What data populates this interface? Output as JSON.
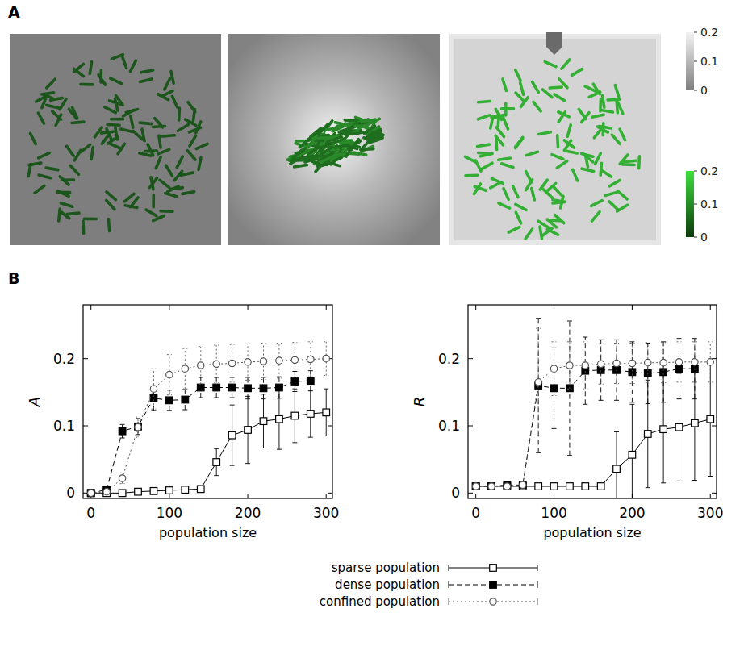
{
  "labels": [
    "A",
    "B"
  ],
  "panel_a": {
    "colorbars": [
      {
        "range": [
          0,
          0.2
        ],
        "ticks": [
          0,
          0.1,
          0.2
        ]
      },
      {
        "range": [
          0,
          0.2
        ],
        "ticks": [
          0,
          0.1,
          0.2
        ]
      }
    ]
  },
  "chart_data": [
    {
      "type": "line",
      "y_label": "A",
      "x_label": "population size",
      "xlim": [
        -10,
        308
      ],
      "ylim": [
        -0.008,
        0.28
      ],
      "xticks": [
        0,
        100,
        200,
        300
      ],
      "yticks": [
        0,
        0.1,
        0.2
      ],
      "legend": "bottom",
      "series": [
        {
          "name": "sparse population",
          "color": "#000000",
          "marker": "square-open",
          "line_style": "solid",
          "x": [
            0,
            20,
            40,
            60,
            80,
            100,
            120,
            140,
            160,
            180,
            200,
            220,
            240,
            260,
            280,
            300
          ],
          "values": [
            0,
            0,
            0,
            0.002,
            0.003,
            0.004,
            0.005,
            0.006,
            0.046,
            0.086,
            0.094,
            0.107,
            0.11,
            0.115,
            0.118,
            0.12
          ],
          "error": [
            0,
            0,
            0.001,
            0.002,
            0.002,
            0.003,
            0.003,
            0.004,
            0.02,
            0.045,
            0.05,
            0.04,
            0.045,
            0.04,
            0.035,
            0.035
          ]
        },
        {
          "name": "dense population",
          "color": "#000000",
          "marker": "square",
          "line_style": "dashed",
          "x": [
            0,
            20,
            40,
            60,
            80,
            100,
            120,
            140,
            160,
            180,
            200,
            220,
            240,
            260,
            280
          ],
          "values": [
            0,
            0.005,
            0.092,
            0.099,
            0.141,
            0.138,
            0.139,
            0.157,
            0.157,
            0.157,
            0.156,
            0.156,
            0.157,
            0.166,
            0.167
          ],
          "error": [
            0,
            0.004,
            0.01,
            0.012,
            0.018,
            0.015,
            0.015,
            0.015,
            0.015,
            0.015,
            0.016,
            0.016,
            0.016,
            0.015,
            0.015
          ]
        },
        {
          "name": "confined population",
          "color": "#555555",
          "marker": "circle-open",
          "line_style": "dotted",
          "x": [
            0,
            20,
            40,
            60,
            80,
            100,
            120,
            140,
            160,
            180,
            200,
            220,
            240,
            260,
            280,
            300
          ],
          "values": [
            0,
            0.002,
            0.022,
            0.098,
            0.155,
            0.176,
            0.185,
            0.19,
            0.192,
            0.193,
            0.195,
            0.196,
            0.197,
            0.198,
            0.199,
            0.2
          ],
          "error": [
            0,
            0.003,
            0.008,
            0.015,
            0.03,
            0.03,
            0.03,
            0.028,
            0.028,
            0.028,
            0.027,
            0.027,
            0.026,
            0.026,
            0.026,
            0.025
          ]
        }
      ]
    },
    {
      "type": "line",
      "y_label": "R",
      "x_label": "population size",
      "xlim": [
        -10,
        308
      ],
      "ylim": [
        -0.008,
        0.28
      ],
      "xticks": [
        0,
        100,
        200,
        300
      ],
      "yticks": [
        0,
        0.1,
        0.2
      ],
      "series": [
        {
          "color": "#000000",
          "marker": "square-open",
          "line_style": "solid",
          "x": [
            0,
            20,
            40,
            60,
            80,
            100,
            120,
            140,
            160,
            180,
            200,
            220,
            240,
            260,
            280,
            300
          ],
          "values": [
            0.01,
            0.01,
            0.01,
            0.01,
            0.01,
            0.01,
            0.01,
            0.01,
            0.01,
            0.036,
            0.057,
            0.088,
            0.095,
            0.098,
            0.104,
            0.11
          ],
          "error": [
            0,
            0,
            0,
            0,
            0,
            0,
            0,
            0,
            0,
            0.055,
            0.075,
            0.08,
            0.08,
            0.08,
            0.085,
            0.085
          ]
        },
        {
          "color": "#000000",
          "marker": "square",
          "line_style": "dashed",
          "x": [
            0,
            20,
            40,
            60,
            80,
            100,
            120,
            140,
            160,
            180,
            200,
            220,
            240,
            260,
            280
          ],
          "values": [
            0.01,
            0.01,
            0.012,
            0.012,
            0.16,
            0.156,
            0.156,
            0.182,
            0.183,
            0.183,
            0.18,
            0.178,
            0.18,
            0.185,
            0.185
          ],
          "error": [
            0.002,
            0.002,
            0.003,
            0.003,
            0.1,
            0.06,
            0.1,
            0.05,
            0.045,
            0.045,
            0.045,
            0.045,
            0.045,
            0.045,
            0.045
          ]
        },
        {
          "color": "#555555",
          "marker": "circle-open",
          "line_style": "dotted",
          "x": [
            0,
            20,
            40,
            60,
            80,
            100,
            120,
            140,
            160,
            180,
            200,
            220,
            240,
            260,
            280,
            300
          ],
          "values": [
            0.01,
            0.01,
            0.01,
            0.012,
            0.165,
            0.185,
            0.19,
            0.19,
            0.192,
            0.193,
            0.193,
            0.194,
            0.194,
            0.195,
            0.195,
            0.195
          ],
          "error": [
            0.002,
            0.002,
            0.002,
            0.003,
            0.08,
            0.04,
            0.035,
            0.035,
            0.03,
            0.03,
            0.03,
            0.03,
            0.03,
            0.03,
            0.03,
            0.03
          ]
        }
      ]
    }
  ]
}
